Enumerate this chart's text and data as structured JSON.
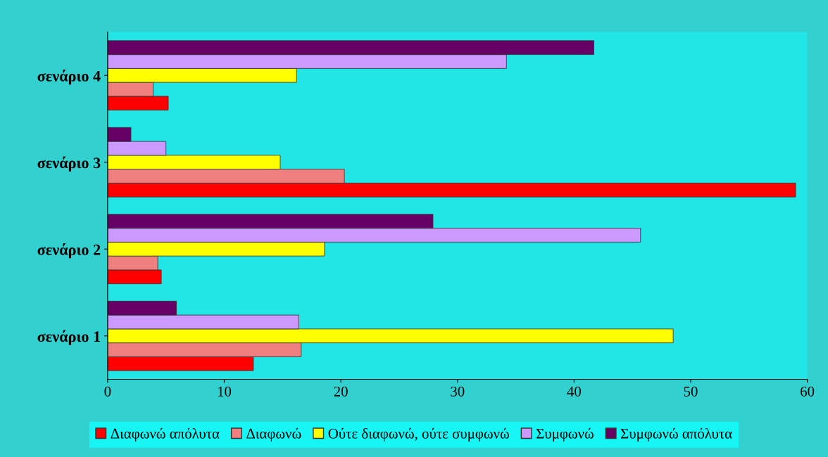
{
  "chart_data": {
    "type": "bar",
    "orientation": "horizontal",
    "categories": [
      "σενάριο 4",
      "σενάριο 3",
      "σενάριο 2",
      "σενάριο 1"
    ],
    "series": [
      {
        "name": "Διαφωνώ απόλυτα",
        "color": "#ff0000",
        "values": [
          5.2,
          59.0,
          4.6,
          12.5
        ]
      },
      {
        "name": "Διαφωνώ",
        "color": "#f08080",
        "values": [
          3.9,
          20.3,
          4.3,
          16.6
        ]
      },
      {
        "name": "Ούτε διαφωνώ, ούτε συμφωνώ",
        "color": "#ffff00",
        "values": [
          16.2,
          14.8,
          18.6,
          48.5
        ]
      },
      {
        "name": "Συμφωνώ",
        "color": "#cc99ff",
        "values": [
          34.2,
          5.0,
          45.7,
          16.4
        ]
      },
      {
        "name": "Συμφωνώ απόλυτα",
        "color": "#660066",
        "values": [
          41.7,
          2.0,
          27.9,
          5.9
        ]
      }
    ],
    "xlim": [
      0,
      60
    ],
    "xticks": [
      0,
      10,
      20,
      30,
      40,
      50,
      60
    ],
    "grid": false,
    "legend": "bottom"
  }
}
